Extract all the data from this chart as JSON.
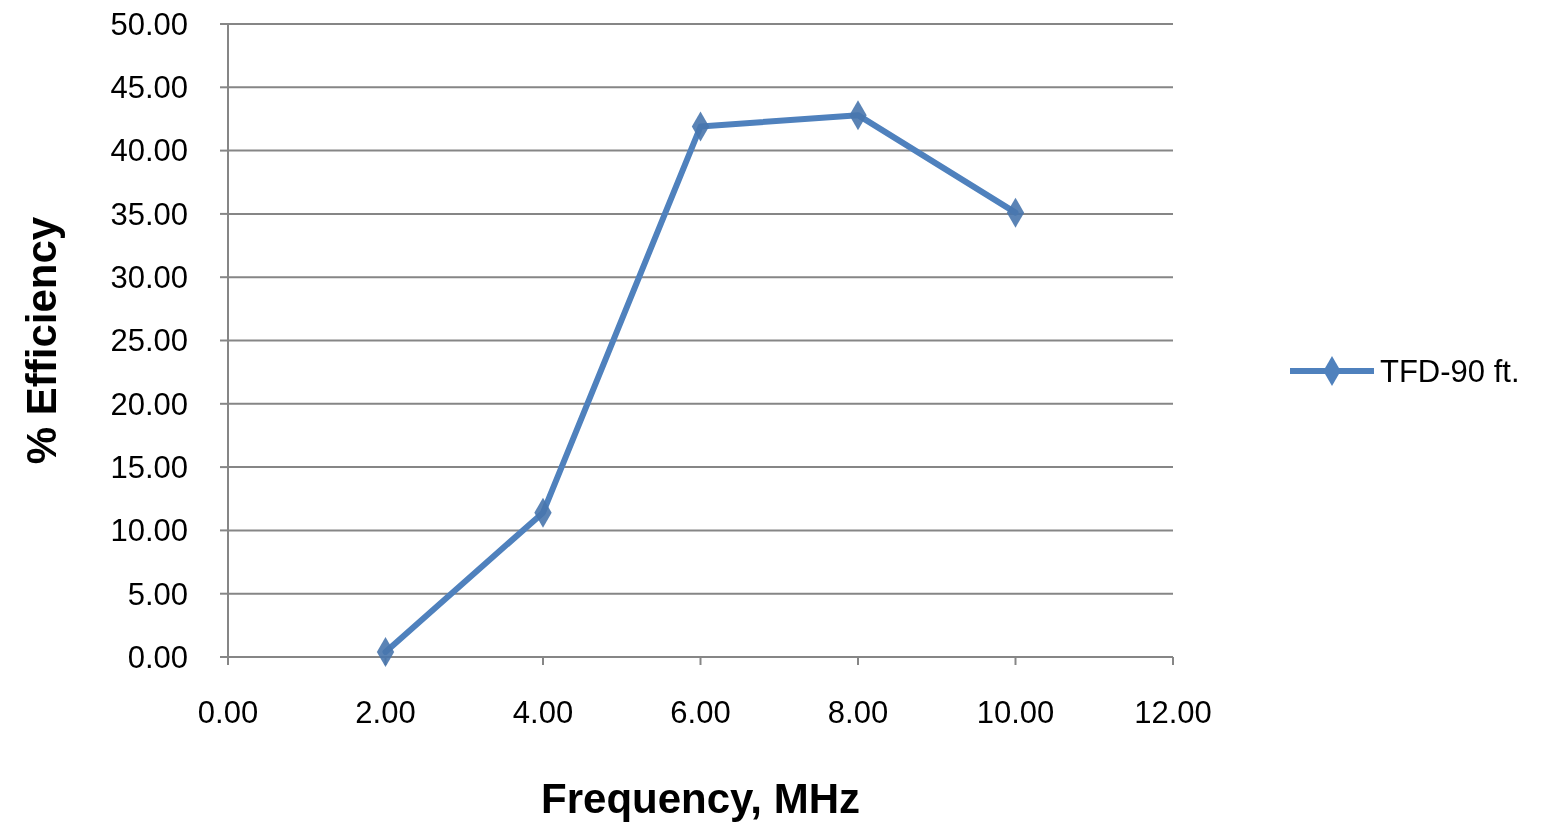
{
  "chart_data": {
    "type": "line",
    "xlabel": "Frequency, MHz",
    "ylabel": "% Efficiency",
    "x": [
      2,
      4,
      6,
      8,
      10
    ],
    "series": [
      {
        "name": "TFD-90 ft.",
        "color": "#4f81bd",
        "values": [
          0.4,
          11.4,
          41.9,
          42.8,
          35.1
        ]
      }
    ],
    "xlim": [
      0,
      12
    ],
    "xticks": [
      {
        "value": 0,
        "label": "0.00"
      },
      {
        "value": 2,
        "label": "2.00"
      },
      {
        "value": 4,
        "label": "4.00"
      },
      {
        "value": 6,
        "label": "6.00"
      },
      {
        "value": 8,
        "label": "8.00"
      },
      {
        "value": 10,
        "label": "10.00"
      },
      {
        "value": 12,
        "label": "12.00"
      }
    ],
    "ylim": [
      0,
      50
    ],
    "yticks": [
      {
        "value": 0,
        "label": "0.00"
      },
      {
        "value": 5,
        "label": "5.00"
      },
      {
        "value": 10,
        "label": "10.00"
      },
      {
        "value": 15,
        "label": "15.00"
      },
      {
        "value": 20,
        "label": "20.00"
      },
      {
        "value": 25,
        "label": "25.00"
      },
      {
        "value": 30,
        "label": "30.00"
      },
      {
        "value": 35,
        "label": "35.00"
      },
      {
        "value": 40,
        "label": "40.00"
      },
      {
        "value": 45,
        "label": "45.00"
      },
      {
        "value": 50,
        "label": "50.00"
      }
    ],
    "grid": "y",
    "legend": "right",
    "marker": "diamond",
    "line_style": "solid"
  }
}
